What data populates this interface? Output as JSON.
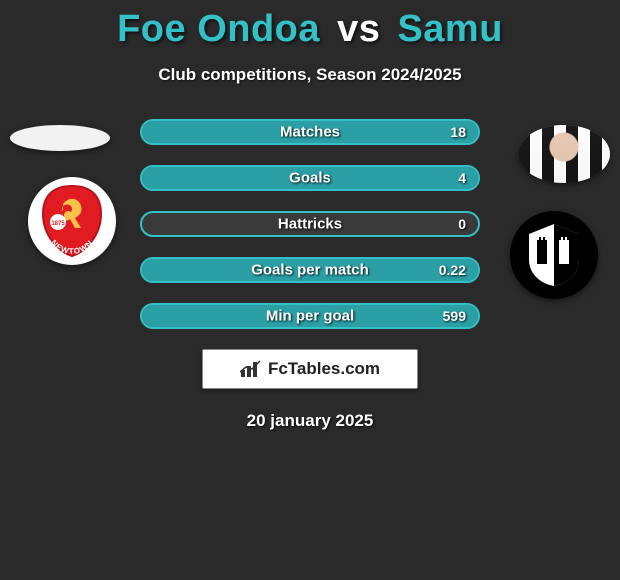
{
  "title": {
    "player1": "Foe Ondoa",
    "vs": "vs",
    "player2": "Samu"
  },
  "title_colors": {
    "player1": "#34c0c7",
    "vs": "#ffffff",
    "player2": "#34c0c7"
  },
  "subtitle": "Club competitions, Season 2024/2025",
  "stats": [
    {
      "label": "Matches",
      "right_value": "18",
      "left_pct": 0,
      "right_pct": 100
    },
    {
      "label": "Goals",
      "right_value": "4",
      "left_pct": 0,
      "right_pct": 100
    },
    {
      "label": "Hattricks",
      "right_value": "0",
      "left_pct": 0,
      "right_pct": 0
    },
    {
      "label": "Goals per match",
      "right_value": "0.22",
      "left_pct": 0,
      "right_pct": 100
    },
    {
      "label": "Min per goal",
      "right_value": "599",
      "left_pct": 0,
      "right_pct": 100
    }
  ],
  "style": {
    "row_border_color": "#34c0c7",
    "fill_left_color": "#2aa0a6",
    "fill_right_color": "#2aa0a6",
    "row_bg": "rgba(70,70,70,0.6)"
  },
  "left_club_crest": {
    "shield_bg": "#e11b22",
    "text": "NEWTOWN",
    "year": "1875"
  },
  "right_club_crest": {
    "bg": "#000000"
  },
  "brand": "FcTables.com",
  "date": "20 january 2025"
}
